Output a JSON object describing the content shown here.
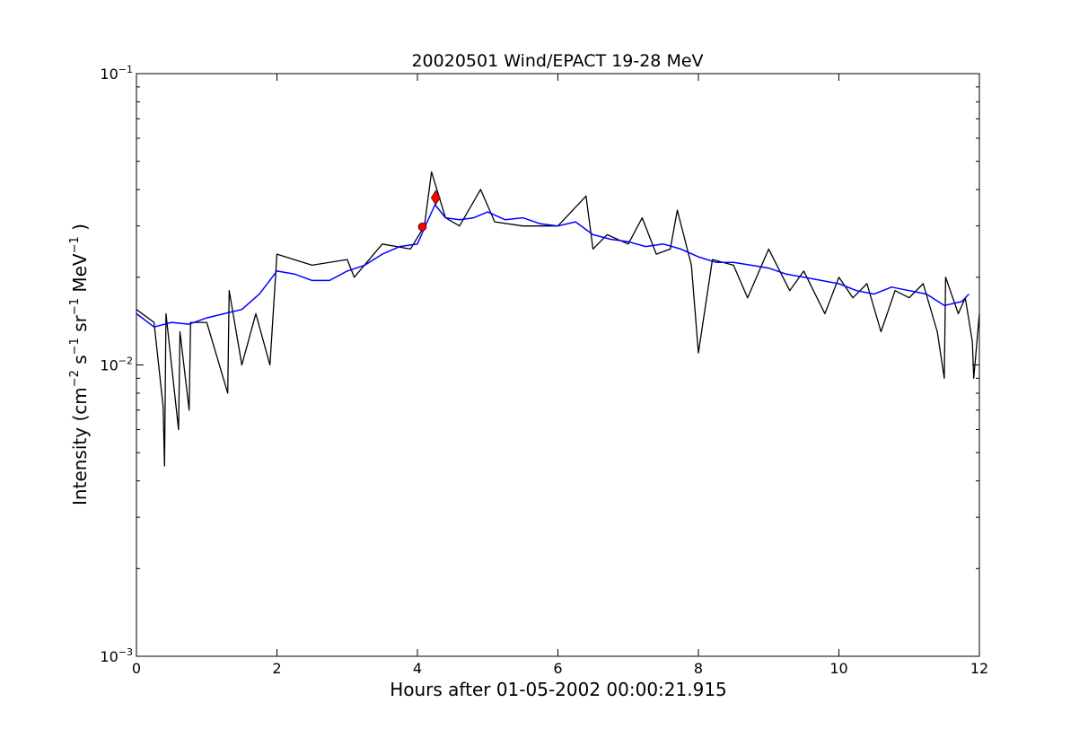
{
  "chart_data": {
    "type": "line",
    "title": "20020501 Wind/EPACT 19-28 MeV",
    "xlabel": "Hours after 01-05-2002 00:00:21.915",
    "ylabel_main": "Intensity (cm",
    "ylabel_parts": [
      "Intensity (cm",
      "−2",
      " s",
      "−1",
      " sr",
      "−1",
      " MeV",
      "−1",
      " )"
    ],
    "xlim": [
      0,
      12
    ],
    "ylim": [
      0.001,
      0.1
    ],
    "yscale": "log",
    "grid": false,
    "legend": "none",
    "x_ticks": [
      {
        "value": 0,
        "label": "0"
      },
      {
        "value": 2,
        "label": "2"
      },
      {
        "value": 4,
        "label": "4"
      },
      {
        "value": 6,
        "label": "6"
      },
      {
        "value": 8,
        "label": "8"
      },
      {
        "value": 10,
        "label": "10"
      },
      {
        "value": 12,
        "label": "12"
      }
    ],
    "y_ticks": [
      {
        "value": 0.001,
        "base": "10",
        "exp": "−3"
      },
      {
        "value": 0.01,
        "base": "10",
        "exp": "−2"
      },
      {
        "value": 0.1,
        "base": "10",
        "exp": "−1"
      }
    ],
    "series": [
      {
        "color": "#000000",
        "style": "raw-noisy",
        "x": [
          0.0,
          0.25,
          0.38,
          0.4,
          0.42,
          0.6,
          0.62,
          0.75,
          0.77,
          1.0,
          1.3,
          1.32,
          1.5,
          1.7,
          1.9,
          2.0,
          2.5,
          3.0,
          3.1,
          3.5,
          3.9,
          4.1,
          4.2,
          4.4,
          4.6,
          4.9,
          5.1,
          5.5,
          6.0,
          6.4,
          6.5,
          6.7,
          7.0,
          7.2,
          7.4,
          7.6,
          7.7,
          7.9,
          8.0,
          8.2,
          8.5,
          8.7,
          9.0,
          9.3,
          9.5,
          9.8,
          10.0,
          10.2,
          10.4,
          10.6,
          10.8,
          11.0,
          11.2,
          11.4,
          11.5,
          11.52,
          11.7,
          11.8,
          11.9,
          11.92,
          12.0
        ],
        "y": [
          0.0155,
          0.014,
          0.0072,
          0.0045,
          0.015,
          0.006,
          0.013,
          0.007,
          0.014,
          0.014,
          0.008,
          0.018,
          0.01,
          0.015,
          0.01,
          0.024,
          0.022,
          0.023,
          0.02,
          0.026,
          0.025,
          0.03,
          0.046,
          0.032,
          0.03,
          0.04,
          0.031,
          0.03,
          0.03,
          0.038,
          0.025,
          0.028,
          0.026,
          0.032,
          0.024,
          0.025,
          0.034,
          0.022,
          0.011,
          0.023,
          0.022,
          0.017,
          0.025,
          0.018,
          0.021,
          0.015,
          0.02,
          0.017,
          0.019,
          0.013,
          0.018,
          0.017,
          0.019,
          0.013,
          0.009,
          0.02,
          0.015,
          0.017,
          0.012,
          0.009,
          0.015
        ]
      },
      {
        "color": "#0000ff",
        "style": "smoothed",
        "x": [
          0.0,
          0.25,
          0.5,
          0.75,
          1.0,
          1.25,
          1.5,
          1.75,
          2.0,
          2.25,
          2.5,
          2.75,
          3.0,
          3.25,
          3.5,
          3.75,
          4.0,
          4.1,
          4.25,
          4.4,
          4.6,
          4.8,
          5.0,
          5.25,
          5.5,
          5.75,
          6.0,
          6.25,
          6.5,
          6.75,
          7.0,
          7.25,
          7.5,
          7.75,
          8.0,
          8.25,
          8.5,
          8.75,
          9.0,
          9.25,
          9.5,
          9.75,
          10.0,
          10.25,
          10.5,
          10.75,
          11.0,
          11.25,
          11.5,
          11.75,
          11.85
        ],
        "y": [
          0.015,
          0.0135,
          0.014,
          0.0138,
          0.0145,
          0.015,
          0.0155,
          0.0175,
          0.021,
          0.0205,
          0.0195,
          0.0195,
          0.021,
          0.022,
          0.024,
          0.0255,
          0.026,
          0.0295,
          0.0355,
          0.032,
          0.0315,
          0.032,
          0.0335,
          0.0315,
          0.032,
          0.0305,
          0.03,
          0.031,
          0.028,
          0.027,
          0.0265,
          0.0255,
          0.026,
          0.025,
          0.0235,
          0.0225,
          0.0225,
          0.022,
          0.0215,
          0.0205,
          0.02,
          0.0195,
          0.019,
          0.018,
          0.0175,
          0.0185,
          0.018,
          0.0175,
          0.016,
          0.0165,
          0.0175
        ]
      }
    ],
    "markers": [
      {
        "x": 4.07,
        "y": 0.0298,
        "shape": "circle",
        "color": "#ff0000"
      },
      {
        "x": 4.26,
        "y": 0.0375,
        "shape": "diamond",
        "color": "#ff0000"
      }
    ]
  }
}
